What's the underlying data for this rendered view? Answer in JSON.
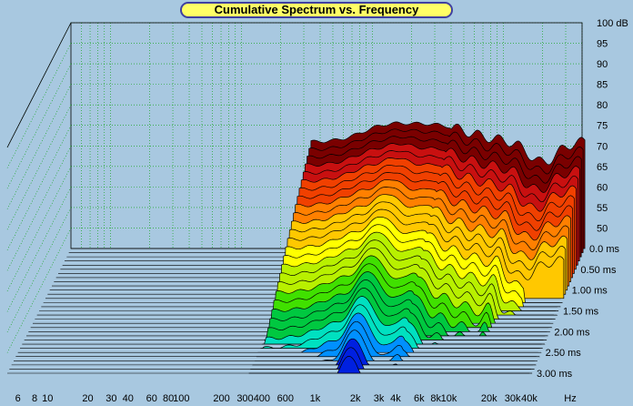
{
  "chart_data": {
    "type": "waterfall",
    "title": "Cumulative Spectrum vs. Frequency",
    "xlabel": "Hz",
    "ylabel": "dB",
    "zlabel": "ms",
    "x_scale": "log",
    "xlim": [
      5,
      40000
    ],
    "ylim": [
      45,
      100
    ],
    "x_ticks": [
      {
        "label": "6",
        "value": 6
      },
      {
        "label": "8",
        "value": 8
      },
      {
        "label": "10",
        "value": 10
      },
      {
        "label": "20",
        "value": 20
      },
      {
        "label": "30",
        "value": 30
      },
      {
        "label": "40",
        "value": 40
      },
      {
        "label": "60",
        "value": 60
      },
      {
        "label": "80",
        "value": 80
      },
      {
        "label": "100",
        "value": 100
      },
      {
        "label": "200",
        "value": 200
      },
      {
        "label": "300",
        "value": 300
      },
      {
        "label": "400",
        "value": 400
      },
      {
        "label": "600",
        "value": 600
      },
      {
        "label": "1k",
        "value": 1000
      },
      {
        "label": "2k",
        "value": 2000
      },
      {
        "label": "3k",
        "value": 3000
      },
      {
        "label": "4k",
        "value": 4000
      },
      {
        "label": "6k",
        "value": 6000
      },
      {
        "label": "8k",
        "value": 8000
      },
      {
        "label": "10k",
        "value": 10000
      },
      {
        "label": "20k",
        "value": 20000
      },
      {
        "label": "30k",
        "value": 30000
      },
      {
        "label": "40k",
        "value": 40000
      }
    ],
    "y_ticks": [
      {
        "label": "100 dB",
        "value": 100
      },
      {
        "label": "95",
        "value": 95
      },
      {
        "label": "90",
        "value": 90
      },
      {
        "label": "85",
        "value": 85
      },
      {
        "label": "80",
        "value": 80
      },
      {
        "label": "75",
        "value": 75
      },
      {
        "label": "70",
        "value": 70
      },
      {
        "label": "65",
        "value": 65
      },
      {
        "label": "60",
        "value": 60
      },
      {
        "label": "55",
        "value": 55
      },
      {
        "label": "50",
        "value": 50
      }
    ],
    "time_ticks": [
      {
        "label": "0.0 ms",
        "value": 0.0
      },
      {
        "label": "0.50 ms",
        "value": 0.5
      },
      {
        "label": "1.00 ms",
        "value": 1.0
      },
      {
        "label": "1.50 ms",
        "value": 1.5
      },
      {
        "label": "2.00 ms",
        "value": 2.0
      },
      {
        "label": "2.50 ms",
        "value": 2.5
      },
      {
        "label": "3.00 ms",
        "value": 3.0
      }
    ],
    "slice_count": 30,
    "grid": true,
    "colormap": [
      "#7a0000",
      "#c81010",
      "#f04000",
      "#ff8000",
      "#ffc800",
      "#ffff00",
      "#b8f000",
      "#40e000",
      "#00c840",
      "#00e0c0",
      "#0090ff",
      "#0020e0"
    ]
  }
}
